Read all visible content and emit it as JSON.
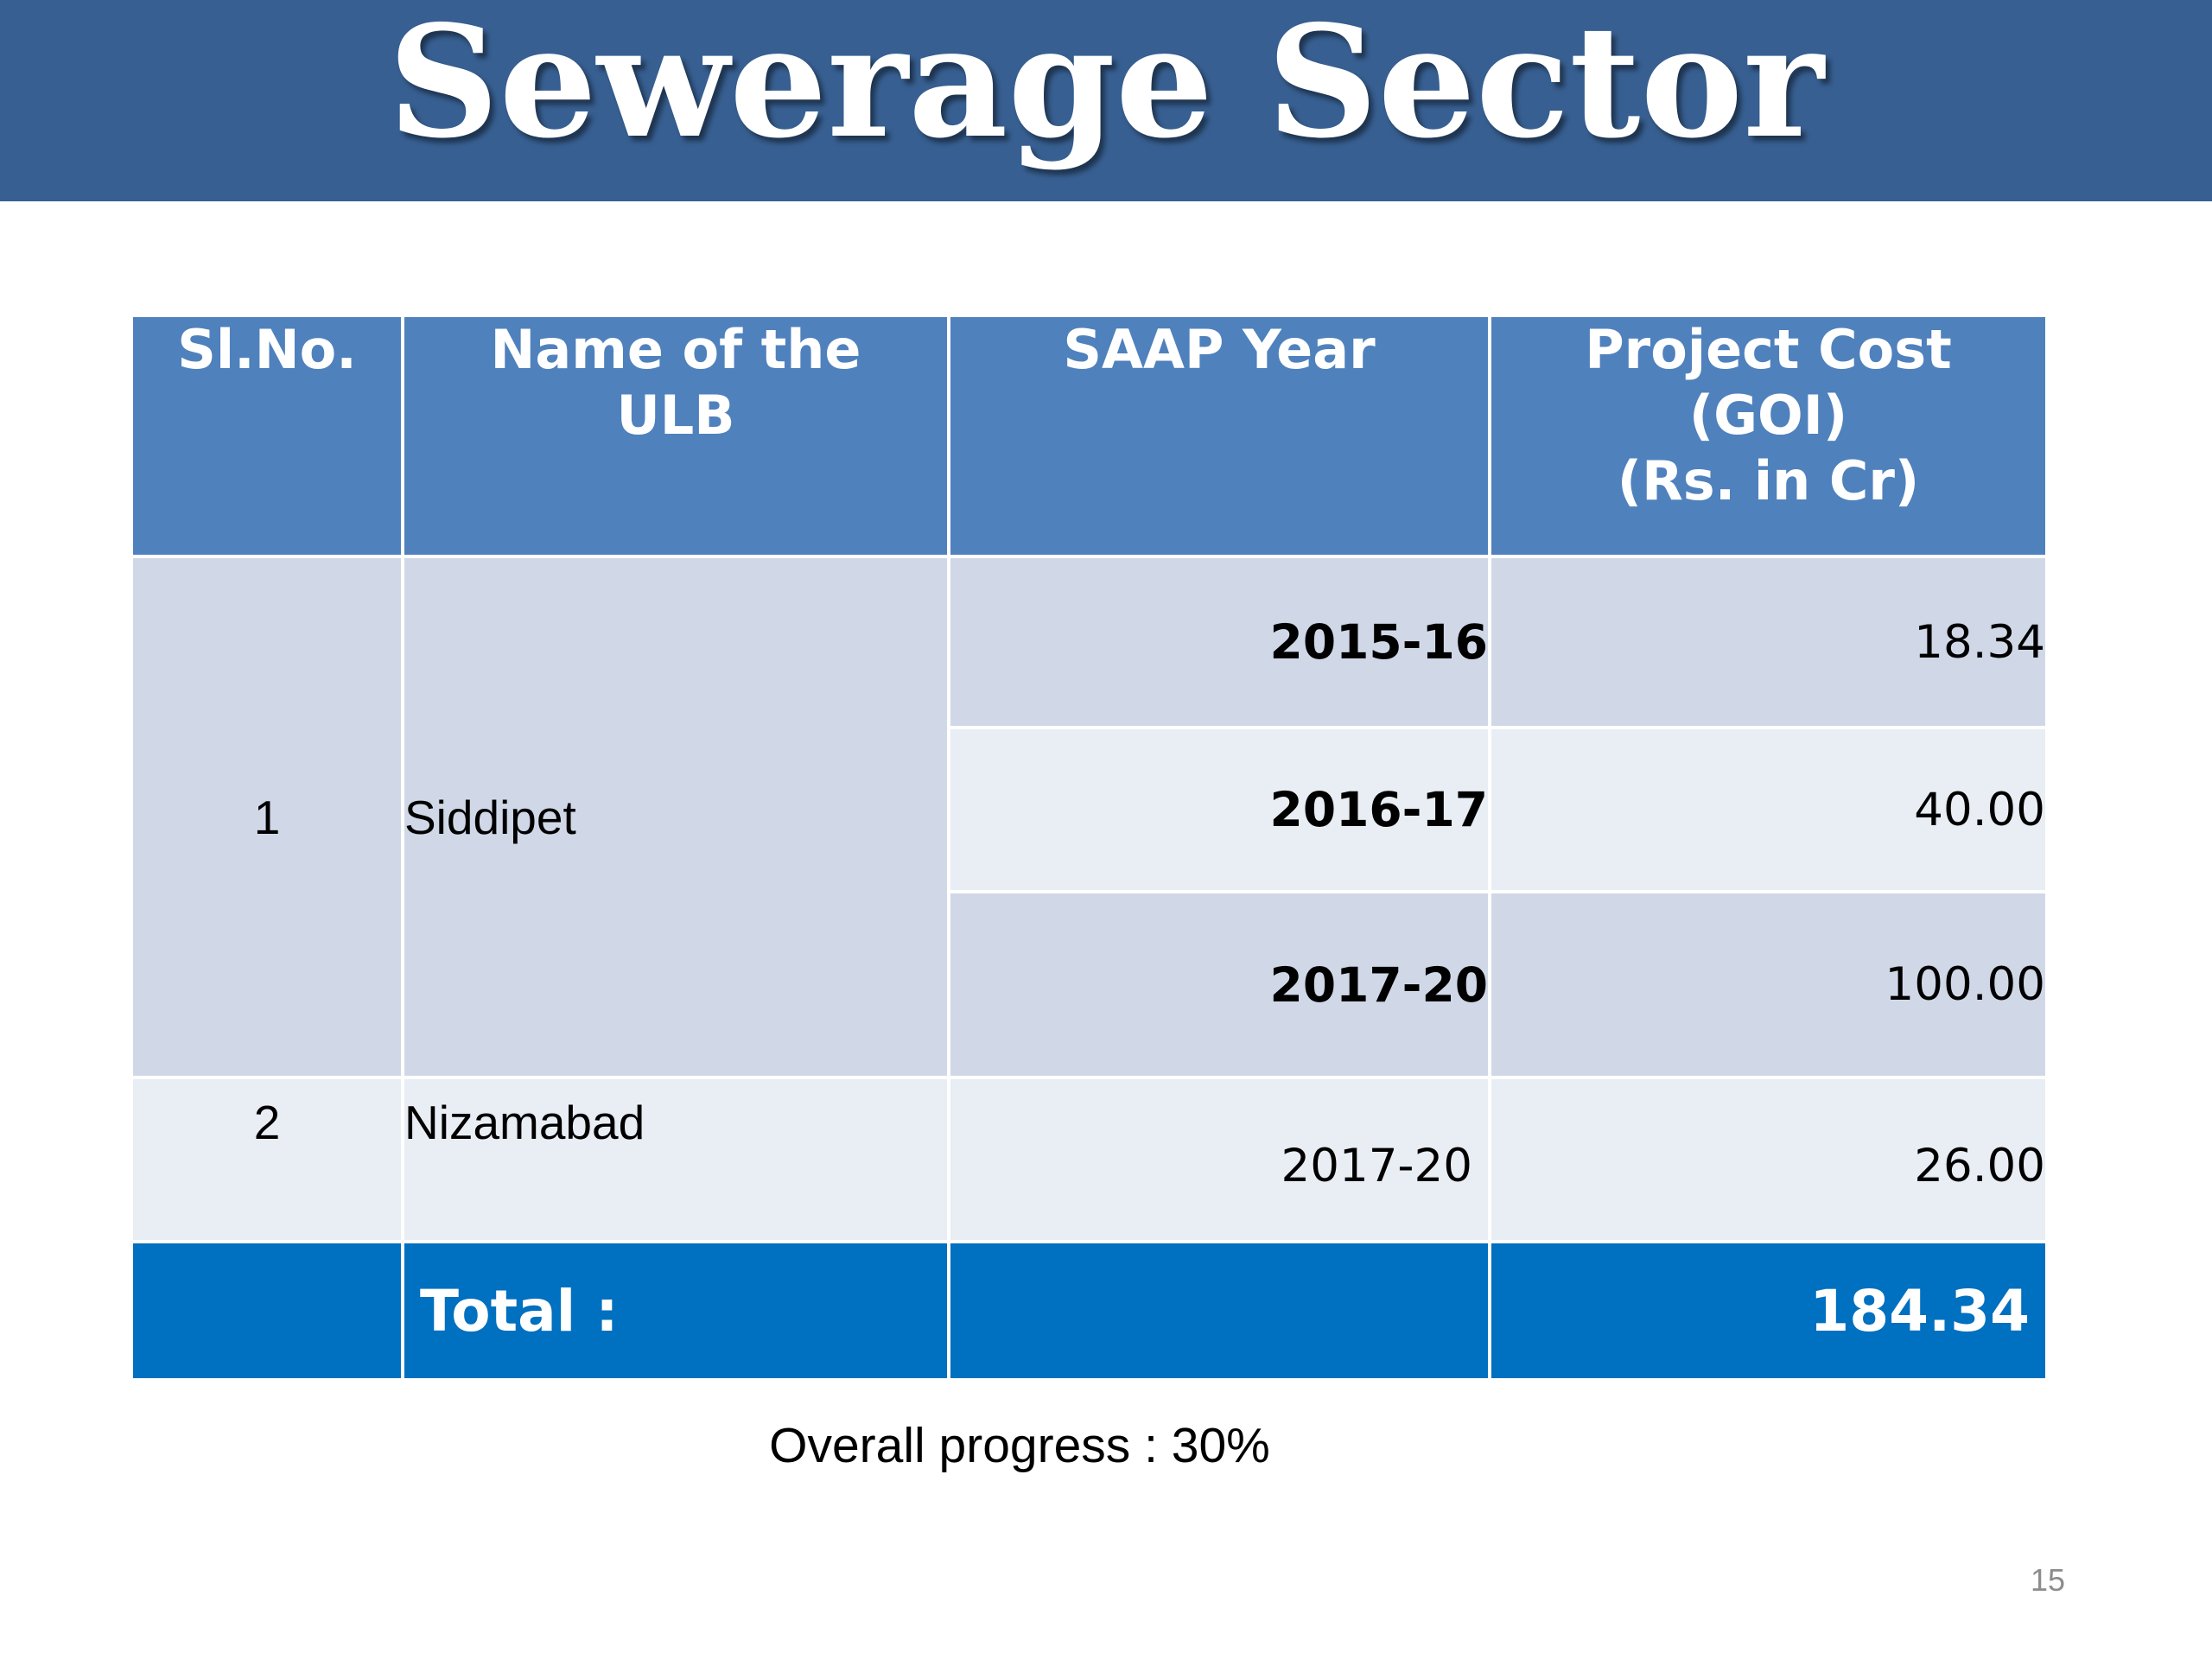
{
  "slide": {
    "title": "Sewerage Sector",
    "page_number": "15"
  },
  "table": {
    "headers": {
      "sl_no": "Sl.No.",
      "ulb_line1": "Name of the",
      "ulb_line2": "ULB",
      "saap_year": "SAAP Year",
      "cost_line1": "Project Cost",
      "cost_line2": "(GOI)",
      "cost_line3": "(Rs. in Cr)"
    },
    "rows": [
      {
        "sl_no": "1",
        "ulb": "Siddipet",
        "entries": [
          {
            "year": "2015-16",
            "cost": "18.34"
          },
          {
            "year": "2016-17",
            "cost": "40.00"
          },
          {
            "year": "2017-20",
            "cost": "100.00"
          }
        ]
      },
      {
        "sl_no": "2",
        "ulb": "Nizamabad",
        "entries": [
          {
            "year": "2017-20",
            "cost": "26.00"
          }
        ]
      }
    ],
    "total": {
      "label": "Total :",
      "value": "184.34"
    }
  },
  "progress": {
    "text": "Overall progress :  30%"
  },
  "colors": {
    "title_bar": "#375F91",
    "header": "#4F81BD",
    "band_dark": "#D0D8E8",
    "band_light": "#E9EDF4",
    "total_row": "#0070C0"
  }
}
